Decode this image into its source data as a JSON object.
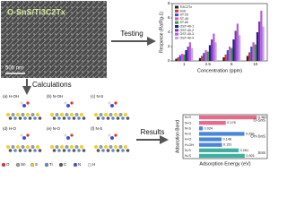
{
  "sem": {
    "title": "O-SnS/Ti3C2Tx",
    "scale_bar": "500 nm"
  },
  "steps": {
    "testing": "Testing",
    "calculations": "Calculations",
    "results": "Results"
  },
  "panels": [
    "(a) H-OH",
    "(b) N-OH",
    "(c) N-S",
    "(d) H-O",
    "(e) N-O",
    "(f) N-S"
  ],
  "atom_legend": [
    {
      "name": "O",
      "color": "#e03030"
    },
    {
      "name": "Sn",
      "color": "#9a9a9a"
    },
    {
      "name": "S",
      "color": "#e8d030"
    },
    {
      "name": "Ti",
      "color": "#5a8acc"
    },
    {
      "name": "C",
      "color": "#555555"
    },
    {
      "name": "N",
      "color": "#4050d0"
    },
    {
      "name": "H",
      "color": "#f0f0f0"
    }
  ],
  "chart_data": [
    {
      "type": "bar",
      "xlabel": "Concentration (ppm)",
      "ylabel": "Response (Ra/Rg-1)",
      "categories": [
        "1",
        "2.5",
        "5",
        "10"
      ],
      "ylim": [
        0,
        8
      ],
      "yticks": [
        0,
        2,
        4,
        6,
        8
      ],
      "legend": "upper left",
      "series": [
        {
          "name": "Ti3C2Tx",
          "color": "#222222",
          "values": [
            0.3,
            0.4,
            0.5,
            0.7
          ]
        },
        {
          "name": "SnS",
          "color": "#e03030",
          "values": [
            0.5,
            0.7,
            0.9,
            1.2
          ]
        },
        {
          "name": "ST-20",
          "color": "#3050e0",
          "values": [
            0.8,
            1.1,
            1.5,
            2.0
          ]
        },
        {
          "name": "ST-40",
          "color": "#e050c0",
          "values": [
            1.0,
            1.5,
            2.0,
            2.6
          ]
        },
        {
          "name": "ST-60",
          "color": "#30a040",
          "values": [
            0.9,
            1.3,
            1.8,
            2.3
          ]
        },
        {
          "name": "OST-40-1",
          "color": "#202080",
          "values": [
            1.5,
            2.2,
            3.0,
            4.0
          ]
        },
        {
          "name": "OST-40-2",
          "color": "#8030b0",
          "values": [
            2.0,
            3.0,
            4.2,
            5.5
          ]
        },
        {
          "name": "OST-40-3",
          "color": "#b060e0",
          "values": [
            2.6,
            3.8,
            5.2,
            7.0
          ]
        },
        {
          "name": "OST-40-4",
          "color": "#c8a0f0",
          "values": [
            1.8,
            2.6,
            3.6,
            4.8
          ]
        }
      ]
    },
    {
      "type": "barh",
      "xlabel": "Adsorption Energy (eV)",
      "ylabel": "Adsorption Bond",
      "categories": [
        "N-S",
        "N-O",
        "N-S",
        "N-S",
        "H-O",
        "H-OH",
        "N-S",
        "N-S"
      ],
      "values": [
        0.381,
        0.176,
        0.024,
        0.299,
        0.148,
        0.151,
        0.261,
        0.301
      ],
      "xlim": [
        0,
        0.45
      ],
      "groups": [
        {
          "name": "O-SnS",
          "color": "#e86a8a",
          "count": 2
        },
        {
          "name": "OH-SnS",
          "color": "#4a86d8",
          "count": 4
        },
        {
          "name": "SnS",
          "color": "#3fb0a0",
          "count": 2
        }
      ]
    }
  ]
}
